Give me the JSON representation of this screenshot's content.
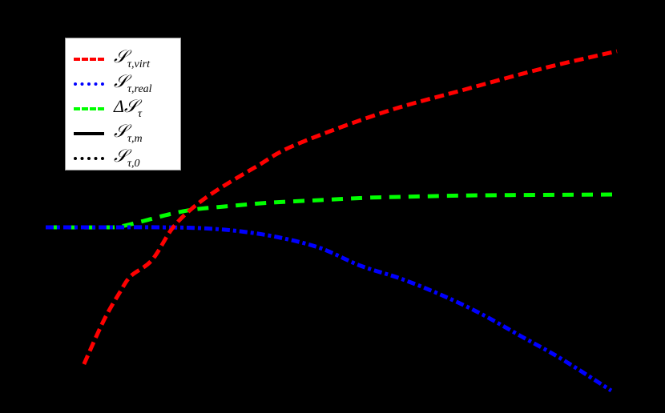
{
  "chart_data": {
    "type": "line",
    "title": "",
    "xlabel": "",
    "ylabel": "",
    "grid": false,
    "background": "#000000",
    "legend_position": "upper-left",
    "xlim": [
      0,
      10
    ],
    "ylim": [
      -4.2,
      4.6
    ],
    "series": [
      {
        "name": "S_τ,virt",
        "label_main": "𝒮",
        "label_sub": "τ,virt",
        "color": "#ff0000",
        "dash": "12,6",
        "x": [
          0.67,
          1.02,
          1.3,
          1.49,
          1.86,
          2.22,
          2.57,
          2.99,
          3.69,
          4.37,
          5.93,
          7.33,
          8.73,
          10.0
        ],
        "y": [
          -3.42,
          -2.32,
          -1.62,
          -1.22,
          -0.82,
          -0.02,
          0.48,
          0.92,
          1.52,
          2.06,
          2.88,
          3.44,
          3.98,
          4.4
        ]
      },
      {
        "name": "S_τ,real",
        "label_main": "𝒮",
        "label_sub": "τ,real",
        "color": "#0000ff",
        "dash": "10,4,4,4",
        "x": [
          0.0,
          1.0,
          2.0,
          2.71,
          3.41,
          4.11,
          4.81,
          5.51,
          6.21,
          6.91,
          7.62,
          8.32,
          9.02,
          9.9
        ],
        "y": [
          0.0,
          0.0,
          0.0,
          -0.02,
          -0.1,
          -0.26,
          -0.52,
          -0.96,
          -1.28,
          -1.68,
          -2.16,
          -2.72,
          -3.28,
          -4.08
        ]
      },
      {
        "name": "ΔS_τ",
        "label_main": "Δ𝒮",
        "label_sub": "τ",
        "color": "#00ff00",
        "dash": "14,10",
        "x": [
          0.0,
          1.0,
          1.3,
          1.72,
          2.15,
          2.57,
          3.13,
          3.97,
          4.81,
          5.65,
          6.21,
          7.62,
          9.93
        ],
        "y": [
          0.0,
          0.0,
          0.02,
          0.16,
          0.32,
          0.44,
          0.52,
          0.62,
          0.68,
          0.74,
          0.76,
          0.8,
          0.82
        ]
      },
      {
        "name": "S_τ,m",
        "label_main": "𝒮",
        "label_sub": "τ,m",
        "color": "#000000",
        "dash": "",
        "x": [],
        "y": []
      },
      {
        "name": "S_τ,0",
        "label_main": "𝒮",
        "label_sub": "τ,0",
        "color": "#000000",
        "dash": "5,3",
        "x": [],
        "y": []
      }
    ]
  }
}
